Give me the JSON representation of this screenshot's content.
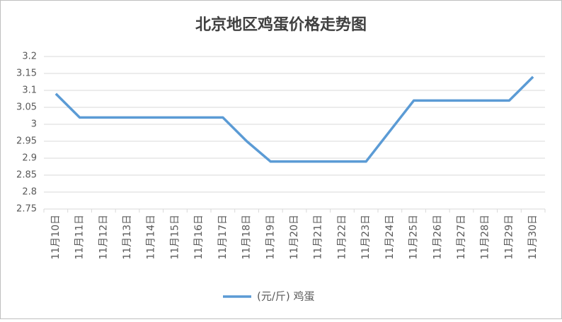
{
  "chart_data": {
    "type": "line",
    "title": "北京地区鸡蛋价格走势图",
    "categories": [
      "11月10日",
      "11月11日",
      "11月12日",
      "11月13日",
      "11月14日",
      "11月15日",
      "11月16日",
      "11月17日",
      "11月18日",
      "11月19日",
      "11月20日",
      "11月21日",
      "11月22日",
      "11月23日",
      "11月24日",
      "11月25日",
      "11月26日",
      "11月27日",
      "11月28日",
      "11月29日",
      "11月30日"
    ],
    "series": [
      {
        "name": "(元/斤) 鸡蛋",
        "color": "#5b9bd5",
        "values": [
          3.09,
          3.02,
          3.02,
          3.02,
          3.02,
          3.02,
          3.02,
          3.02,
          2.95,
          2.89,
          2.89,
          2.89,
          2.89,
          2.89,
          2.98,
          3.07,
          3.07,
          3.07,
          3.07,
          3.07,
          3.14
        ]
      }
    ],
    "ylim": [
      2.75,
      3.2
    ],
    "yticks": [
      2.75,
      2.8,
      2.85,
      2.9,
      2.95,
      3,
      3.05,
      3.1,
      3.15,
      3.2
    ],
    "grid": true,
    "legend": "bottom"
  }
}
